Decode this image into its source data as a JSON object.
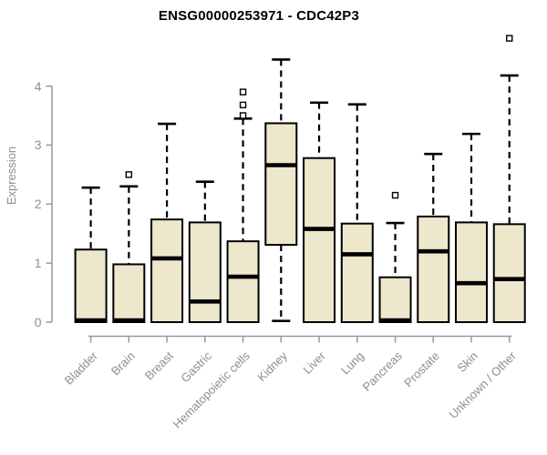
{
  "chart_data": {
    "type": "boxplot",
    "title": "ENSG00000253971 - CDC42P3",
    "ylabel": "Expression",
    "xlabel": "",
    "ylim": [
      0,
      4.9
    ],
    "yticks": [
      0,
      1,
      2,
      3,
      4
    ],
    "grid": false,
    "legend": "none",
    "box_fill_color": "#EDE7CC",
    "box_border_color": "#000000",
    "axis_color": "#999999",
    "label_color": "#8e8e8e",
    "title_color": "#000000",
    "categories": [
      "Bladder",
      "Brain",
      "Breast",
      "Gastric",
      "Hematopoietic cells",
      "Kidney",
      "Liver",
      "Lung",
      "Pancreas",
      "Prostate",
      "Skin",
      "Unknown / Other"
    ],
    "boxes": [
      {
        "category": "Bladder",
        "whisker_low": 0,
        "q1": 0,
        "median": 0.03,
        "q3": 1.23,
        "whisker_high": 2.28,
        "outliers": []
      },
      {
        "category": "Brain",
        "whisker_low": 0,
        "q1": 0,
        "median": 0.03,
        "q3": 0.98,
        "whisker_high": 2.3,
        "outliers": [
          2.5
        ]
      },
      {
        "category": "Breast",
        "whisker_low": 0,
        "q1": 0,
        "median": 1.08,
        "q3": 1.74,
        "whisker_high": 3.36,
        "outliers": []
      },
      {
        "category": "Gastric",
        "whisker_low": 0,
        "q1": 0,
        "median": 0.35,
        "q3": 1.69,
        "whisker_high": 2.38,
        "outliers": []
      },
      {
        "category": "Hematopoietic cells",
        "whisker_low": 0,
        "q1": 0,
        "median": 0.77,
        "q3": 1.37,
        "whisker_high": 3.45,
        "outliers": [
          3.5,
          3.68,
          3.9
        ]
      },
      {
        "category": "Kidney",
        "whisker_low": 0.02,
        "q1": 1.31,
        "median": 2.66,
        "q3": 3.37,
        "whisker_high": 4.45,
        "outliers": []
      },
      {
        "category": "Liver",
        "whisker_low": 0,
        "q1": 0,
        "median": 1.58,
        "q3": 2.78,
        "whisker_high": 3.72,
        "outliers": []
      },
      {
        "category": "Lung",
        "whisker_low": 0,
        "q1": 0,
        "median": 1.15,
        "q3": 1.67,
        "whisker_high": 3.69,
        "outliers": []
      },
      {
        "category": "Pancreas",
        "whisker_low": 0,
        "q1": 0,
        "median": 0.03,
        "q3": 0.76,
        "whisker_high": 1.68,
        "outliers": [
          2.15
        ]
      },
      {
        "category": "Prostate",
        "whisker_low": 0,
        "q1": 0,
        "median": 1.2,
        "q3": 1.79,
        "whisker_high": 2.85,
        "outliers": []
      },
      {
        "category": "Skin",
        "whisker_low": 0,
        "q1": 0,
        "median": 0.66,
        "q3": 1.69,
        "whisker_high": 3.19,
        "outliers": []
      },
      {
        "category": "Unknown / Other",
        "whisker_low": 0,
        "q1": 0,
        "median": 0.73,
        "q3": 1.66,
        "whisker_high": 4.18,
        "outliers": [
          4.81
        ]
      }
    ]
  }
}
